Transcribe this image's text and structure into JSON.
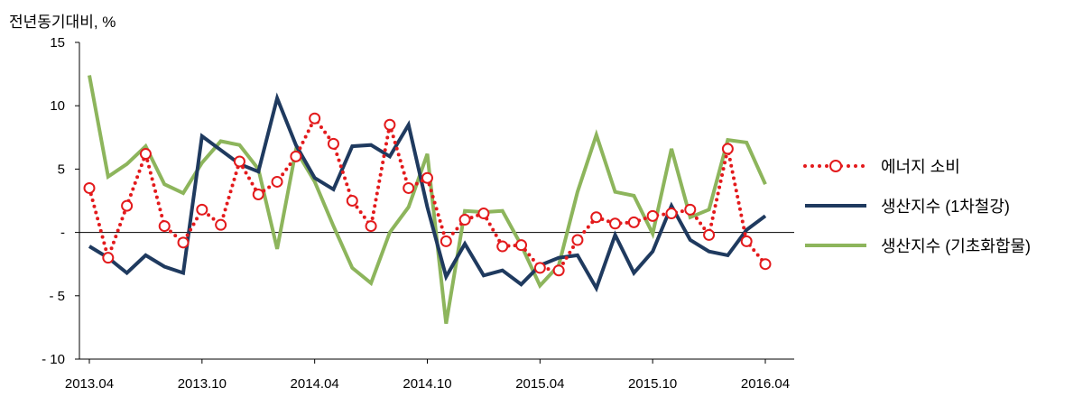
{
  "chart_data": {
    "type": "line",
    "ylabel": "전년동기대비, %",
    "ylim": [
      -10,
      15
    ],
    "yticks": [
      {
        "value": 15,
        "label": "15"
      },
      {
        "value": 10,
        "label": "10"
      },
      {
        "value": 5,
        "label": "5"
      },
      {
        "value": 0,
        "label": "-"
      },
      {
        "value": -5,
        "label": "- 5"
      },
      {
        "value": -10,
        "label": "- 10"
      }
    ],
    "x": [
      "2013.04",
      "2013.05",
      "2013.06",
      "2013.07",
      "2013.08",
      "2013.09",
      "2013.10",
      "2013.11",
      "2013.12",
      "2014.01",
      "2014.02",
      "2014.03",
      "2014.04",
      "2014.05",
      "2014.06",
      "2014.07",
      "2014.08",
      "2014.09",
      "2014.10",
      "2014.11",
      "2014.12",
      "2015.01",
      "2015.02",
      "2015.03",
      "2015.04",
      "2015.05",
      "2015.06",
      "2015.07",
      "2015.08",
      "2015.09",
      "2015.10",
      "2015.11",
      "2015.12",
      "2016.01",
      "2016.02",
      "2016.03",
      "2016.04"
    ],
    "xticks": [
      "2013.04",
      "2013.10",
      "2014.04",
      "2014.10",
      "2015.04",
      "2015.10",
      "2016.04"
    ],
    "series": [
      {
        "name": "에너지 소비",
        "color": "#e31a1c",
        "style": "dotted-circle",
        "values": [
          3.5,
          -2.0,
          2.1,
          6.2,
          0.5,
          -0.8,
          1.8,
          0.6,
          5.6,
          3.0,
          4.0,
          6.0,
          9.0,
          7.0,
          2.5,
          0.5,
          8.5,
          3.5,
          4.3,
          -0.7,
          1.0,
          1.5,
          -1.1,
          -1.0,
          -2.8,
          -3.0,
          -0.6,
          1.2,
          0.7,
          0.8,
          1.3,
          1.5,
          1.8,
          -0.2,
          6.6,
          -0.7,
          -2.5
        ]
      },
      {
        "name": "생산지수 (1차철강)",
        "color": "#1f3a5f",
        "style": "solid",
        "values": [
          -1.1,
          -2.0,
          -3.2,
          -1.8,
          -2.7,
          -3.2,
          7.6,
          6.5,
          5.4,
          4.8,
          10.6,
          6.9,
          4.3,
          3.4,
          6.8,
          6.9,
          6.0,
          8.5,
          2.0,
          -3.5,
          -0.9,
          -3.4,
          -3.0,
          -4.1,
          -2.6,
          -2.0,
          -1.8,
          -4.4,
          -0.2,
          -3.2,
          -1.5,
          2.1,
          -0.6,
          -1.5,
          -1.8,
          0.2,
          1.3
        ]
      },
      {
        "name": "생산지수 (기초화합물)",
        "color": "#8db55c",
        "style": "solid",
        "values": [
          12.4,
          4.4,
          5.4,
          6.8,
          3.8,
          3.1,
          5.5,
          7.2,
          6.9,
          5.0,
          -1.3,
          6.5,
          4.0,
          0.5,
          -2.8,
          -4.0,
          0.0,
          2.0,
          6.2,
          -7.2,
          1.7,
          1.6,
          1.7,
          -1.0,
          -4.2,
          -2.6,
          3.2,
          7.7,
          3.2,
          2.9,
          -0.1,
          6.6,
          1.2,
          1.8,
          7.3,
          7.1,
          3.8
        ]
      }
    ]
  }
}
